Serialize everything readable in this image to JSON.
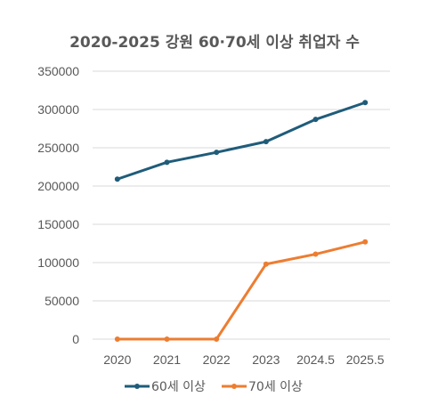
{
  "chart_data": {
    "type": "line",
    "title": "2020-2025 강원 60·70세 이상 취업자 수",
    "xlabel": "",
    "ylabel": "",
    "categories": [
      "2020",
      "2021",
      "2022",
      "2023",
      "2024.5",
      "2025.5"
    ],
    "ylim": [
      0,
      350000
    ],
    "yticks": [
      0,
      50000,
      100000,
      150000,
      200000,
      250000,
      300000,
      350000
    ],
    "grid": true,
    "legend_position": "bottom",
    "series": [
      {
        "name": "60세 이상",
        "color": "#1f5c7a",
        "values": [
          209000,
          231000,
          244000,
          258000,
          287000,
          309000
        ]
      },
      {
        "name": "70세 이상",
        "color": "#ed7d31",
        "values": [
          0,
          0,
          0,
          98000,
          111000,
          127000
        ]
      }
    ]
  }
}
